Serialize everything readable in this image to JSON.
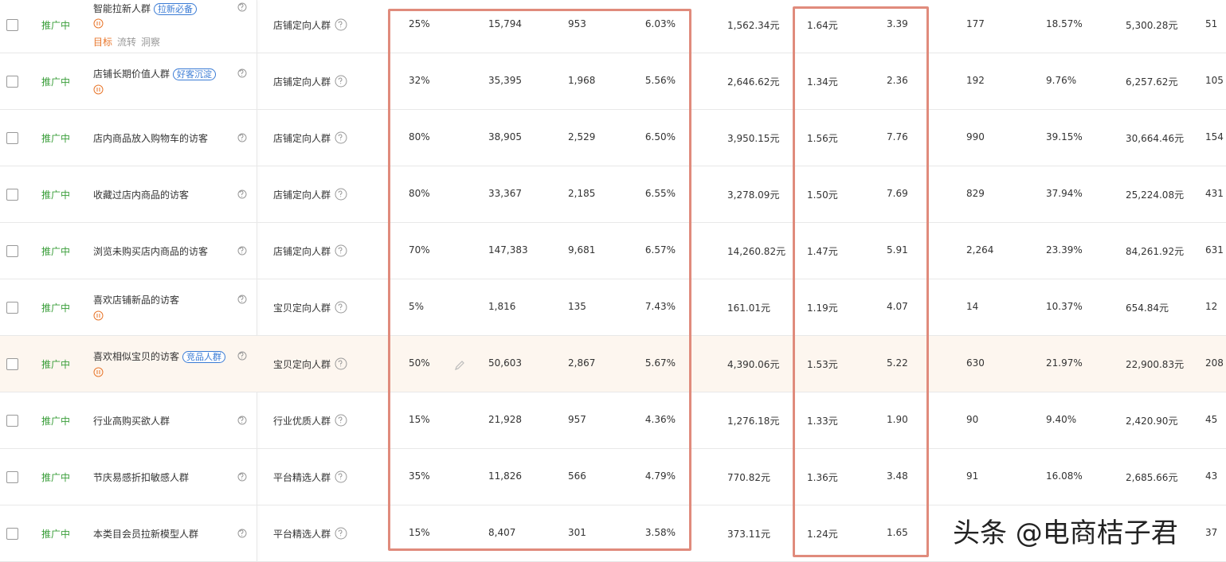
{
  "rows": [
    {
      "status": "推广中",
      "name": "智能拉新人群",
      "tag": "拉新必备",
      "alert_icon": true,
      "actions": [
        "目标",
        "流转",
        "洞察"
      ],
      "type": "店铺定向人群",
      "cells": [
        "25%",
        "15,794",
        "953",
        "6.03%",
        "1,562.34元",
        "1.64元",
        "3.39",
        "177",
        "18.57%",
        "5,300.28元",
        "51"
      ]
    },
    {
      "status": "推广中",
      "name": "店铺长期价值人群",
      "tag": "好客沉淀",
      "alert_icon": true,
      "type": "店铺定向人群",
      "cells": [
        "32%",
        "35,395",
        "1,968",
        "5.56%",
        "2,646.62元",
        "1.34元",
        "2.36",
        "192",
        "9.76%",
        "6,257.62元",
        "105"
      ]
    },
    {
      "status": "推广中",
      "name": "店内商品放入购物车的访客",
      "type": "店铺定向人群",
      "cells": [
        "80%",
        "38,905",
        "2,529",
        "6.50%",
        "3,950.15元",
        "1.56元",
        "7.76",
        "990",
        "39.15%",
        "30,664.46元",
        "154"
      ]
    },
    {
      "status": "推广中",
      "name": "收藏过店内商品的访客",
      "type": "店铺定向人群",
      "cells": [
        "80%",
        "33,367",
        "2,185",
        "6.55%",
        "3,278.09元",
        "1.50元",
        "7.69",
        "829",
        "37.94%",
        "25,224.08元",
        "431"
      ]
    },
    {
      "status": "推广中",
      "name": "浏览未购买店内商品的访客",
      "type": "店铺定向人群",
      "cells": [
        "70%",
        "147,383",
        "9,681",
        "6.57%",
        "14,260.82元",
        "1.47元",
        "5.91",
        "2,264",
        "23.39%",
        "84,261.92元",
        "631"
      ]
    },
    {
      "status": "推广中",
      "name": "喜欢店铺新品的访客",
      "alert_icon": true,
      "type": "宝贝定向人群",
      "cells": [
        "5%",
        "1,816",
        "135",
        "7.43%",
        "161.01元",
        "1.19元",
        "4.07",
        "14",
        "10.37%",
        "654.84元",
        "12"
      ]
    },
    {
      "status": "推广中",
      "name": "喜欢相似宝贝的访客",
      "tag": "竞品人群",
      "alert_icon": true,
      "highlighted": true,
      "type": "宝贝定向人群",
      "cells": [
        "50%",
        "50,603",
        "2,867",
        "5.67%",
        "4,390.06元",
        "1.53元",
        "5.22",
        "630",
        "21.97%",
        "22,900.83元",
        "208"
      ]
    },
    {
      "status": "推广中",
      "name": "行业高购买欲人群",
      "type": "行业优质人群",
      "cells": [
        "15%",
        "21,928",
        "957",
        "4.36%",
        "1,276.18元",
        "1.33元",
        "1.90",
        "90",
        "9.40%",
        "2,420.90元",
        "45"
      ]
    },
    {
      "status": "推广中",
      "name": "节庆易感折扣敏感人群",
      "type": "平台精选人群",
      "cells": [
        "35%",
        "11,826",
        "566",
        "4.79%",
        "770.82元",
        "1.36元",
        "3.48",
        "91",
        "16.08%",
        "2,685.66元",
        "43"
      ]
    },
    {
      "status": "推广中",
      "name": "本类目会员拉新模型人群",
      "type": "平台精选人群",
      "cells": [
        "15%",
        "8,407",
        "301",
        "3.58%",
        "373.11元",
        "1.24元",
        "1.65",
        null,
        null,
        null,
        "37"
      ]
    }
  ],
  "watermark": "头条 @电商桔子君"
}
